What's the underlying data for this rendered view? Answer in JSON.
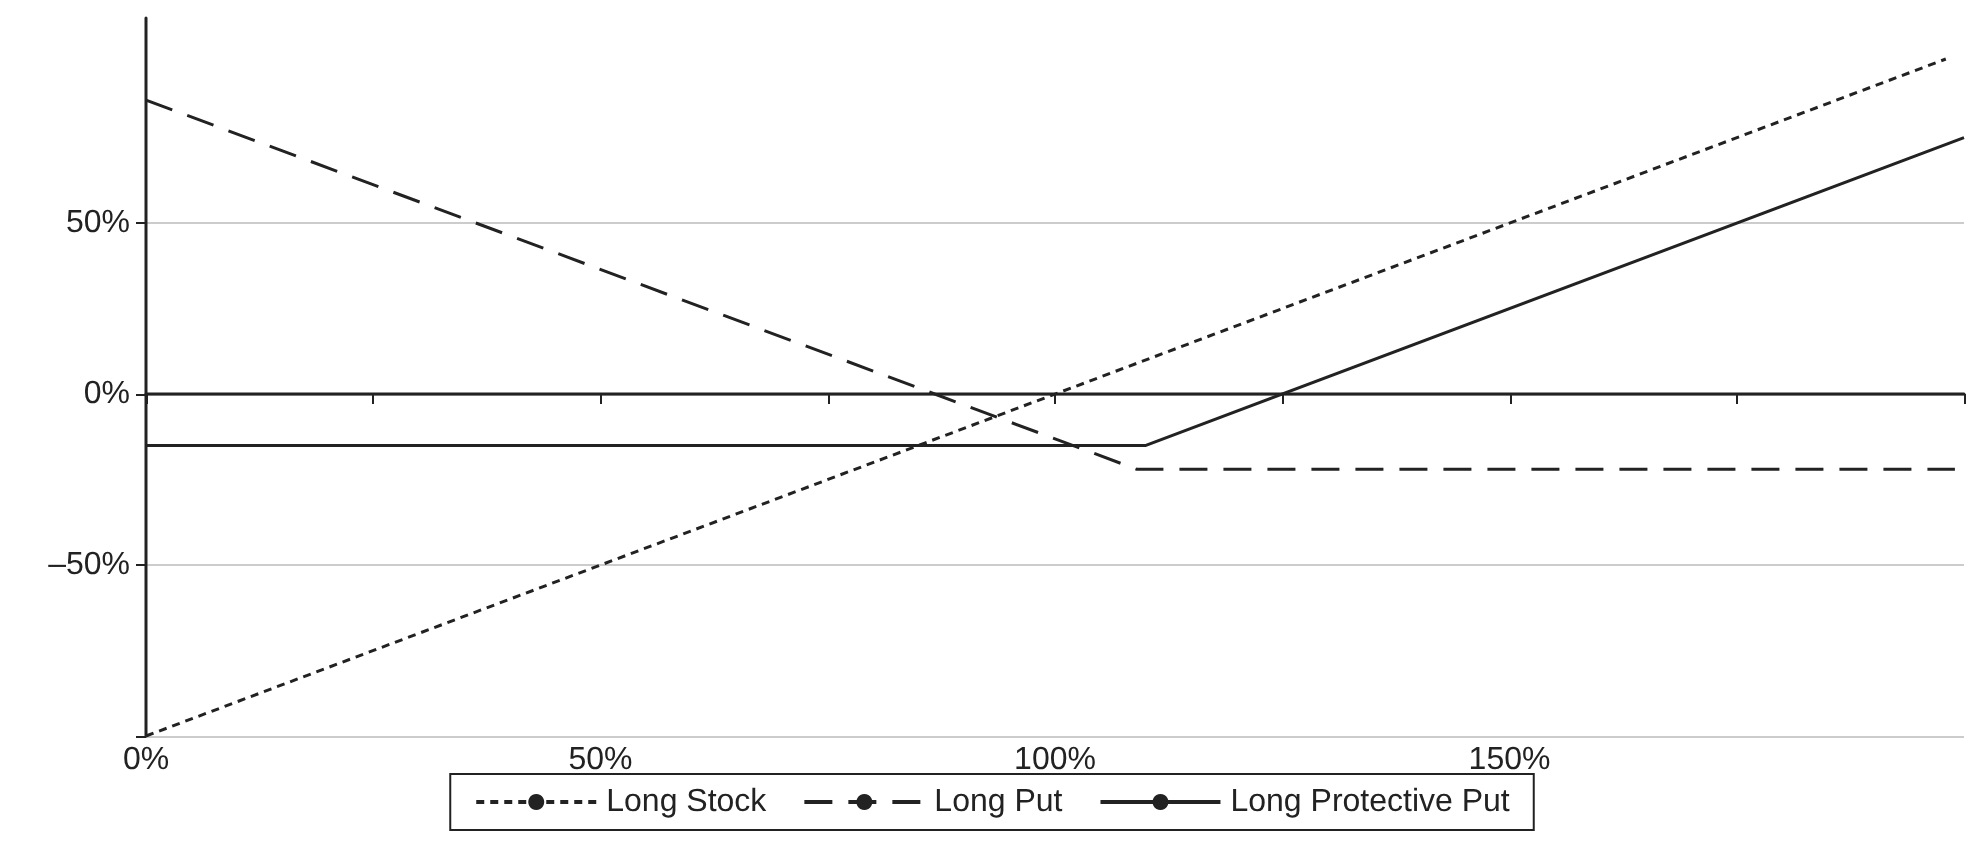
{
  "chart_data": {
    "type": "line",
    "series": [
      {
        "name": "Long Stock",
        "color": "#222222",
        "line_style": "dotted",
        "x": [
          0,
          198
        ],
        "values": [
          -100,
          98
        ]
      },
      {
        "name": "Long Put",
        "color": "#222222",
        "line_style": "dashed",
        "x": [
          0,
          109,
          199
        ],
        "values": [
          86,
          -22,
          -22
        ]
      },
      {
        "name": "Long Protective Put",
        "color": "#222222",
        "line_style": "solid",
        "x": [
          0,
          110,
          200
        ],
        "values": [
          -15,
          -15,
          75
        ]
      }
    ],
    "xlim": [
      0,
      200
    ],
    "xticks": [
      {
        "value": 0,
        "label": "0%"
      },
      {
        "value": 25,
        "label": null
      },
      {
        "value": 50,
        "label": "50%"
      },
      {
        "value": 75,
        "label": null
      },
      {
        "value": 100,
        "label": "100%"
      },
      {
        "value": 125,
        "label": null
      },
      {
        "value": 150,
        "label": "150%"
      },
      {
        "value": 175,
        "label": null
      },
      {
        "value": 200,
        "label": null
      }
    ],
    "ylim": [
      -100,
      110
    ],
    "yticks": [
      {
        "value": -100,
        "label": null
      },
      {
        "value": -50,
        "label": "–50%"
      },
      {
        "value": 0,
        "label": "0%"
      },
      {
        "value": 50,
        "label": "50%"
      }
    ],
    "grid": "y",
    "legend": "bottom",
    "marker": "none"
  }
}
